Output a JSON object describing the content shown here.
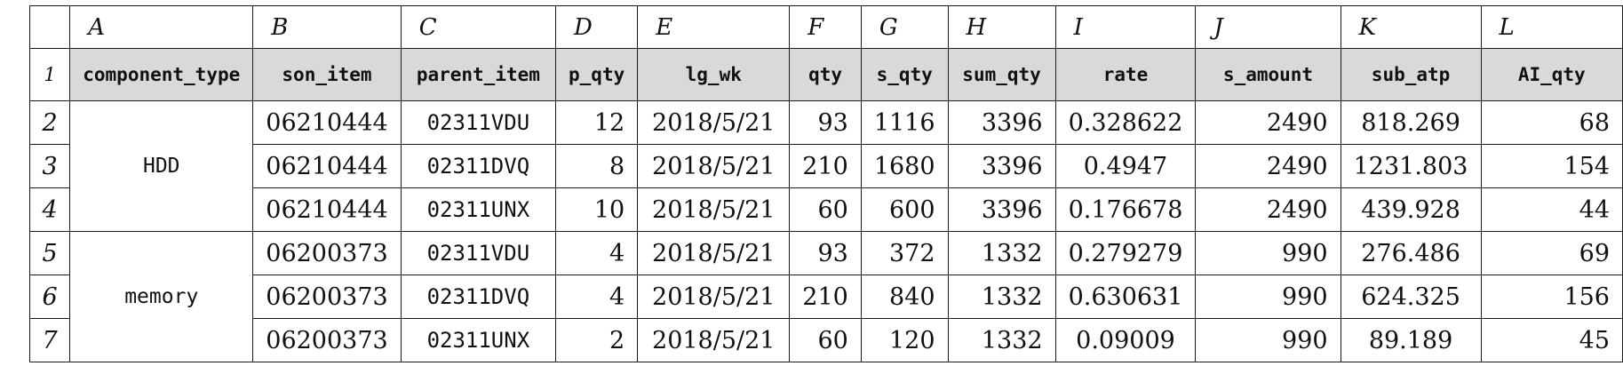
{
  "column_letters": [
    "A",
    "B",
    "C",
    "D",
    "E",
    "F",
    "G",
    "H",
    "I",
    "J",
    "K",
    "L"
  ],
  "row_numbers": [
    "1",
    "2",
    "3",
    "4",
    "5",
    "6",
    "7"
  ],
  "headers": [
    "component_type",
    "son_item",
    "parent_item",
    "p_qty",
    "lg_wk",
    "qty",
    "s_qty",
    "sum_qty",
    "rate",
    "s_amount",
    "sub_atp",
    "AI_qty"
  ],
  "groups": [
    "HDD",
    "memory"
  ],
  "rows": [
    {
      "son_item": "06210444",
      "parent_item": "02311VDU",
      "p_qty": "12",
      "lg_wk": "2018/5/21",
      "qty": "93",
      "s_qty": "1116",
      "sum_qty": "3396",
      "rate": "0.328622",
      "s_amount": "2490",
      "sub_atp": "818.269",
      "ai_qty": "68"
    },
    {
      "son_item": "06210444",
      "parent_item": "02311DVQ",
      "p_qty": "8",
      "lg_wk": "2018/5/21",
      "qty": "210",
      "s_qty": "1680",
      "sum_qty": "3396",
      "rate": "0.4947",
      "s_amount": "2490",
      "sub_atp": "1231.803",
      "ai_qty": "154"
    },
    {
      "son_item": "06210444",
      "parent_item": "02311UNX",
      "p_qty": "10",
      "lg_wk": "2018/5/21",
      "qty": "60",
      "s_qty": "600",
      "sum_qty": "3396",
      "rate": "0.176678",
      "s_amount": "2490",
      "sub_atp": "439.928",
      "ai_qty": "44"
    },
    {
      "son_item": "06200373",
      "parent_item": "02311VDU",
      "p_qty": "4",
      "lg_wk": "2018/5/21",
      "qty": "93",
      "s_qty": "372",
      "sum_qty": "1332",
      "rate": "0.279279",
      "s_amount": "990",
      "sub_atp": "276.486",
      "ai_qty": "69"
    },
    {
      "son_item": "06200373",
      "parent_item": "02311DVQ",
      "p_qty": "4",
      "lg_wk": "2018/5/21",
      "qty": "210",
      "s_qty": "840",
      "sum_qty": "1332",
      "rate": "0.630631",
      "s_amount": "990",
      "sub_atp": "624.325",
      "ai_qty": "156"
    },
    {
      "son_item": "06200373",
      "parent_item": "02311UNX",
      "p_qty": "2",
      "lg_wk": "2018/5/21",
      "qty": "60",
      "s_qty": "120",
      "sum_qty": "1332",
      "rate": "0.09009",
      "s_amount": "990",
      "sub_atp": "89.189",
      "ai_qty": "45"
    }
  ]
}
